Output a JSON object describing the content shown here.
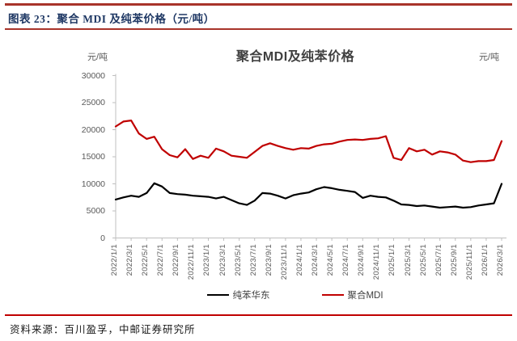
{
  "figure": {
    "caption": "图表 23：聚合 MDI 及纯苯价格（元/吨）",
    "source_label": "资料来源：百川盈孚，中邮证券研究所"
  },
  "theme": {
    "rule_top_color": "#A8342A",
    "rule_bottom_color": "#C00000",
    "caption_color": "#1F3864",
    "axis_line_color": "#BFBFBF",
    "axis_label_color": "#595959",
    "chart_title_color": "#3F3F3F"
  },
  "chart_data": {
    "type": "line",
    "title": "聚合MDI及纯苯价格",
    "unit_left": "元/吨",
    "unit_right": "元/吨",
    "ylim": [
      0,
      30000
    ],
    "yticks": [
      0,
      5000,
      10000,
      15000,
      20000,
      25000,
      30000
    ],
    "grid": false,
    "legend_position": "bottom",
    "x_monthly_start": "2022/1",
    "x_monthly_end": "2026/3",
    "xtick_every_n_months": 2,
    "xtick_labels": [
      "2022/1/1",
      "2022/3/1",
      "2022/5/1",
      "2022/7/1",
      "2022/9/1",
      "2022/11/1",
      "2023/1/1",
      "2023/3/1",
      "2023/5/1",
      "2023/7/1",
      "2023/9/1",
      "2023/11/1",
      "2024/1/1",
      "2024/3/1",
      "2024/5/1",
      "2024/7/1",
      "2024/9/1",
      "2024/11/1",
      "2025/1/1",
      "2025/3/1",
      "2025/5/1",
      "2025/7/1",
      "2025/9/1",
      "2025/11/1",
      "2026/1/1",
      "2026/3/1"
    ],
    "series": [
      {
        "key": "benzene-east",
        "name": "纯苯华东",
        "color": "#000000",
        "monthly_values": [
          7100,
          7500,
          7800,
          7600,
          8300,
          10100,
          9500,
          8300,
          8100,
          8000,
          7800,
          7700,
          7600,
          7300,
          7600,
          7000,
          6400,
          6100,
          6900,
          8300,
          8200,
          7800,
          7300,
          7900,
          8200,
          8400,
          9000,
          9400,
          9200,
          8900,
          8700,
          8500,
          7400,
          7800,
          7600,
          7500,
          6900,
          6200,
          6100,
          5900,
          6000,
          5800,
          5600,
          5700,
          5800,
          5600,
          5700,
          6000,
          6200,
          6400,
          10000
        ]
      },
      {
        "key": "poly-mdi",
        "name": "聚合MDI",
        "color": "#C00000",
        "monthly_values": [
          20600,
          21500,
          21700,
          19300,
          18300,
          18700,
          16400,
          15300,
          14900,
          16400,
          14600,
          15200,
          14800,
          16500,
          16000,
          15200,
          15000,
          14800,
          15900,
          17000,
          17500,
          17000,
          16600,
          16300,
          16600,
          16500,
          17000,
          17300,
          17400,
          17800,
          18100,
          18200,
          18100,
          18300,
          18400,
          18800,
          14800,
          14400,
          16600,
          16000,
          16300,
          15400,
          16000,
          15800,
          15400,
          14300,
          14000,
          14200,
          14200,
          14400,
          17900
        ]
      }
    ]
  }
}
